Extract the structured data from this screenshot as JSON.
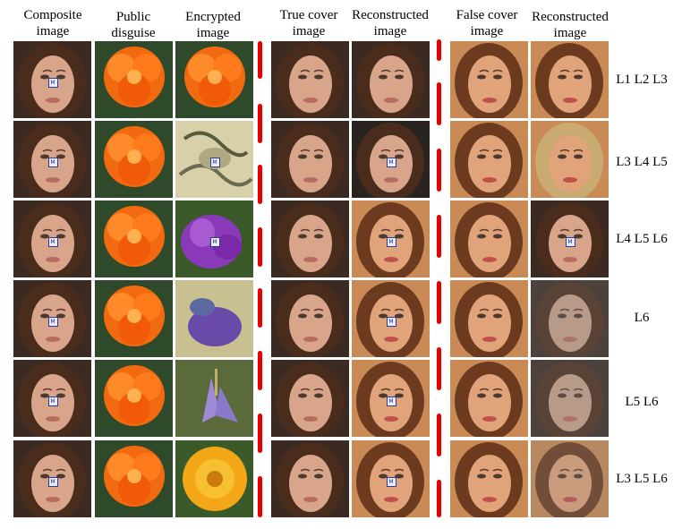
{
  "headers": {
    "composite": [
      "Composite",
      "image"
    ],
    "public": [
      "Public",
      "disguise"
    ],
    "encrypted": [
      "Encrypted",
      "image"
    ],
    "true_cover": [
      "True cover",
      "image"
    ],
    "reconstructed_true": [
      "Reconstructed",
      "image"
    ],
    "false_cover": [
      "False cover",
      "image"
    ],
    "reconstructed_false": [
      "Reconstructed",
      "image"
    ]
  },
  "rows": [
    {
      "label": "L1 L2 L3",
      "encrypted": "orange-flower",
      "recon_true": "face-clean",
      "recon_false": "face-b"
    },
    {
      "label": "L3 L4 L5",
      "encrypted": "noise-pale",
      "recon_true": "face-dark-badge",
      "recon_false": "face-blond"
    },
    {
      "label": "L4 L5 L6",
      "encrypted": "purple-flower-badge",
      "recon_true": "face-badge",
      "recon_false": "face-a-badge"
    },
    {
      "label": "L6",
      "encrypted": "purple-noise",
      "recon_true": "face-badge",
      "recon_false": "face-a-dim"
    },
    {
      "label": "L5 L6",
      "encrypted": "lavender-flower",
      "recon_true": "face-badge",
      "recon_false": "face-a-dim"
    },
    {
      "label": "L3 L5 L6",
      "encrypted": "yellow-flower",
      "recon_true": "face-badge",
      "recon_false": "face-b-dim"
    }
  ],
  "badge_glyph": "M",
  "colors": {
    "separator": "#e60000"
  }
}
